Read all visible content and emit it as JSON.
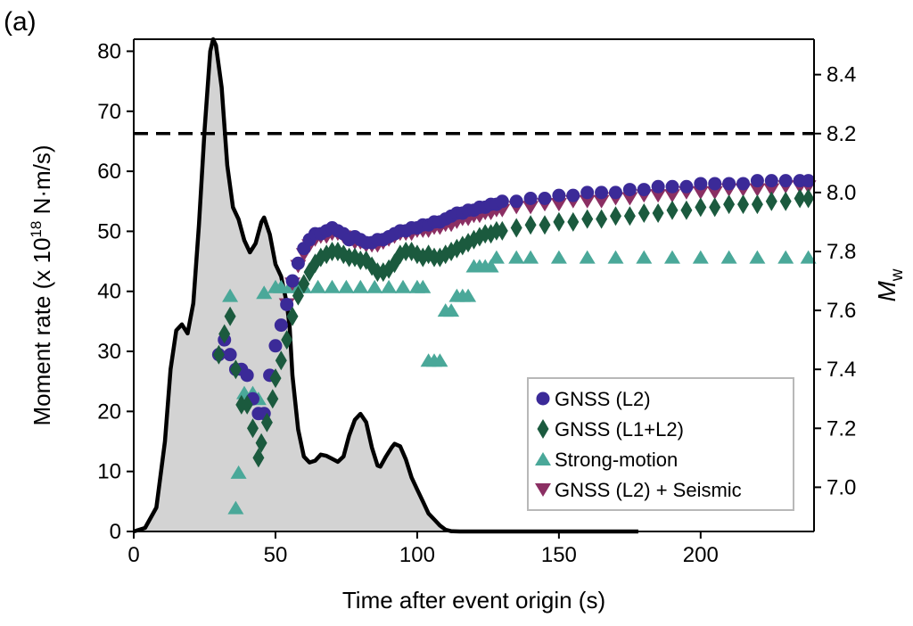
{
  "panel_label": "(a)",
  "chart_data": {
    "type": "line",
    "xlabel": "Time after event origin (s)",
    "ylabel": "Moment rate (x 10^18 N·m/s)",
    "ylabel_parts": {
      "main": "Moment rate (x 10",
      "sup": "18",
      "tail": " N·m/s)"
    },
    "y2label": "Mw",
    "y2label_parts": {
      "main": "M",
      "sub": "w"
    },
    "xlim": [
      0,
      240
    ],
    "ylim": [
      0,
      82
    ],
    "y2lim": [
      6.85,
      8.52
    ],
    "x_ticks": [
      0,
      50,
      100,
      150,
      200
    ],
    "y_ticks": [
      0,
      10,
      20,
      30,
      40,
      50,
      60,
      70,
      80
    ],
    "y2_ticks": [
      "7.0",
      "7.2",
      "7.4",
      "7.6",
      "7.8",
      "8.0",
      "8.2",
      "8.4"
    ],
    "grid": false,
    "legend_position": "bottom-right",
    "reference_line": {
      "axis": "y2",
      "value": 8.2,
      "style": "dashed"
    },
    "moment_rate": {
      "name": "Moment rate",
      "fill": "#d3d3d3",
      "stroke": "#000000",
      "points": [
        [
          0,
          0
        ],
        [
          4,
          0.6
        ],
        [
          8,
          4
        ],
        [
          11,
          15
        ],
        [
          13,
          27
        ],
        [
          15,
          33.5
        ],
        [
          17,
          34.5
        ],
        [
          19,
          33
        ],
        [
          21,
          38
        ],
        [
          23,
          51
        ],
        [
          25,
          67
        ],
        [
          27,
          80
        ],
        [
          28,
          82
        ],
        [
          29,
          81
        ],
        [
          31,
          74
        ],
        [
          33,
          61
        ],
        [
          35,
          54
        ],
        [
          37,
          52
        ],
        [
          39,
          48.5
        ],
        [
          41,
          46.5
        ],
        [
          43,
          48
        ],
        [
          45,
          51.5
        ],
        [
          46,
          52.3
        ],
        [
          48,
          49.5
        ],
        [
          50,
          44.5
        ],
        [
          52,
          42.5
        ],
        [
          54,
          38
        ],
        [
          55,
          34
        ],
        [
          56,
          26
        ],
        [
          58,
          17
        ],
        [
          60,
          12.5
        ],
        [
          62,
          11.5
        ],
        [
          64,
          11.8
        ],
        [
          66,
          12.8
        ],
        [
          68,
          12.6
        ],
        [
          70,
          12.1
        ],
        [
          72,
          11.6
        ],
        [
          74,
          12.5
        ],
        [
          76,
          16
        ],
        [
          78,
          18.6
        ],
        [
          80,
          19.6
        ],
        [
          82,
          18.2
        ],
        [
          84,
          14
        ],
        [
          86,
          11
        ],
        [
          87,
          10.8
        ],
        [
          89,
          12.5
        ],
        [
          91,
          14
        ],
        [
          92,
          14.6
        ],
        [
          94,
          14.2
        ],
        [
          96,
          12
        ],
        [
          98,
          9
        ],
        [
          100,
          7
        ],
        [
          102,
          5
        ],
        [
          104,
          3
        ],
        [
          106,
          2
        ],
        [
          108,
          1
        ],
        [
          110,
          0.3
        ],
        [
          112,
          0.05
        ],
        [
          115,
          0
        ],
        [
          178,
          0
        ]
      ]
    },
    "series": [
      {
        "name": "GNSS (L2)",
        "marker": "circle",
        "color": "#3b2a98",
        "points": [
          [
            30,
            7.45
          ],
          [
            32,
            7.5
          ],
          [
            34,
            7.45
          ],
          [
            36,
            7.4
          ],
          [
            38,
            7.4
          ],
          [
            40,
            7.38
          ],
          [
            42,
            7.3
          ],
          [
            44,
            7.25
          ],
          [
            46,
            7.25
          ],
          [
            48,
            7.38
          ],
          [
            50,
            7.48
          ],
          [
            52,
            7.55
          ],
          [
            54,
            7.62
          ],
          [
            56,
            7.7
          ],
          [
            58,
            7.76
          ],
          [
            60,
            7.81
          ],
          [
            62,
            7.84
          ],
          [
            64,
            7.86
          ],
          [
            66,
            7.86
          ],
          [
            68,
            7.87
          ],
          [
            70,
            7.88
          ],
          [
            72,
            7.87
          ],
          [
            74,
            7.86
          ],
          [
            76,
            7.84
          ],
          [
            78,
            7.85
          ],
          [
            80,
            7.84
          ],
          [
            82,
            7.83
          ],
          [
            84,
            7.83
          ],
          [
            86,
            7.84
          ],
          [
            88,
            7.84
          ],
          [
            90,
            7.85
          ],
          [
            92,
            7.86
          ],
          [
            94,
            7.87
          ],
          [
            96,
            7.87
          ],
          [
            98,
            7.88
          ],
          [
            100,
            7.88
          ],
          [
            102,
            7.89
          ],
          [
            104,
            7.89
          ],
          [
            106,
            7.9
          ],
          [
            108,
            7.9
          ],
          [
            110,
            7.91
          ],
          [
            112,
            7.92
          ],
          [
            114,
            7.93
          ],
          [
            116,
            7.93
          ],
          [
            118,
            7.94
          ],
          [
            120,
            7.94
          ],
          [
            122,
            7.95
          ],
          [
            124,
            7.95
          ],
          [
            126,
            7.96
          ],
          [
            128,
            7.96
          ],
          [
            130,
            7.97
          ],
          [
            135,
            7.97
          ],
          [
            140,
            7.98
          ],
          [
            145,
            7.98
          ],
          [
            150,
            7.99
          ],
          [
            155,
            7.99
          ],
          [
            160,
            8.0
          ],
          [
            165,
            8.0
          ],
          [
            170,
            8.0
          ],
          [
            175,
            8.01
          ],
          [
            180,
            8.01
          ],
          [
            185,
            8.02
          ],
          [
            190,
            8.02
          ],
          [
            195,
            8.02
          ],
          [
            200,
            8.03
          ],
          [
            205,
            8.03
          ],
          [
            210,
            8.03
          ],
          [
            215,
            8.03
          ],
          [
            220,
            8.04
          ],
          [
            225,
            8.04
          ],
          [
            230,
            8.04
          ],
          [
            235,
            8.04
          ],
          [
            238,
            8.04
          ]
        ]
      },
      {
        "name": "GNSS (L1+L2)",
        "marker": "diamond",
        "color": "#1b5a3e",
        "points": [
          [
            30,
            7.45
          ],
          [
            32,
            7.52
          ],
          [
            34,
            7.58
          ],
          [
            36,
            7.4
          ],
          [
            38,
            7.28
          ],
          [
            40,
            7.28
          ],
          [
            42,
            7.2
          ],
          [
            44,
            7.1
          ],
          [
            45,
            7.15
          ],
          [
            47,
            7.22
          ],
          [
            49,
            7.3
          ],
          [
            50,
            7.37
          ],
          [
            52,
            7.43
          ],
          [
            54,
            7.5
          ],
          [
            56,
            7.58
          ],
          [
            58,
            7.65
          ],
          [
            60,
            7.69
          ],
          [
            62,
            7.73
          ],
          [
            64,
            7.76
          ],
          [
            66,
            7.78
          ],
          [
            68,
            7.79
          ],
          [
            70,
            7.8
          ],
          [
            72,
            7.8
          ],
          [
            74,
            7.79
          ],
          [
            76,
            7.78
          ],
          [
            78,
            7.78
          ],
          [
            80,
            7.77
          ],
          [
            82,
            7.77
          ],
          [
            84,
            7.75
          ],
          [
            86,
            7.73
          ],
          [
            88,
            7.73
          ],
          [
            90,
            7.74
          ],
          [
            92,
            7.76
          ],
          [
            94,
            7.79
          ],
          [
            96,
            7.8
          ],
          [
            98,
            7.8
          ],
          [
            100,
            7.79
          ],
          [
            102,
            7.78
          ],
          [
            104,
            7.79
          ],
          [
            106,
            7.78
          ],
          [
            108,
            7.78
          ],
          [
            110,
            7.79
          ],
          [
            112,
            7.8
          ],
          [
            114,
            7.81
          ],
          [
            116,
            7.82
          ],
          [
            118,
            7.83
          ],
          [
            120,
            7.84
          ],
          [
            122,
            7.85
          ],
          [
            124,
            7.86
          ],
          [
            126,
            7.86
          ],
          [
            128,
            7.87
          ],
          [
            130,
            7.87
          ],
          [
            135,
            7.88
          ],
          [
            140,
            7.89
          ],
          [
            145,
            7.89
          ],
          [
            150,
            7.9
          ],
          [
            155,
            7.9
          ],
          [
            160,
            7.91
          ],
          [
            165,
            7.91
          ],
          [
            170,
            7.92
          ],
          [
            175,
            7.92
          ],
          [
            180,
            7.93
          ],
          [
            185,
            7.93
          ],
          [
            190,
            7.94
          ],
          [
            195,
            7.94
          ],
          [
            200,
            7.95
          ],
          [
            205,
            7.95
          ],
          [
            210,
            7.96
          ],
          [
            215,
            7.96
          ],
          [
            220,
            7.96
          ],
          [
            225,
            7.97
          ],
          [
            230,
            7.97
          ],
          [
            235,
            7.98
          ],
          [
            238,
            7.98
          ]
        ]
      },
      {
        "name": "Strong-motion",
        "marker": "triangle-up",
        "color": "#4aa899",
        "points": [
          [
            34,
            7.65
          ],
          [
            36,
            6.93
          ],
          [
            37,
            7.05
          ],
          [
            39,
            7.32
          ],
          [
            42,
            7.32
          ],
          [
            44,
            7.3
          ],
          [
            46,
            7.66
          ],
          [
            50,
            7.68
          ],
          [
            52,
            7.68
          ],
          [
            55,
            7.68
          ],
          [
            58,
            7.68
          ],
          [
            60,
            7.68
          ],
          [
            65,
            7.68
          ],
          [
            70,
            7.68
          ],
          [
            75,
            7.68
          ],
          [
            80,
            7.68
          ],
          [
            85,
            7.68
          ],
          [
            90,
            7.68
          ],
          [
            95,
            7.68
          ],
          [
            100,
            7.68
          ],
          [
            102,
            7.68
          ],
          [
            104,
            7.43
          ],
          [
            106,
            7.43
          ],
          [
            108,
            7.43
          ],
          [
            110,
            7.6
          ],
          [
            112,
            7.6
          ],
          [
            114,
            7.65
          ],
          [
            116,
            7.65
          ],
          [
            118,
            7.65
          ],
          [
            120,
            7.75
          ],
          [
            122,
            7.75
          ],
          [
            124,
            7.75
          ],
          [
            126,
            7.75
          ],
          [
            128,
            7.78
          ],
          [
            135,
            7.78
          ],
          [
            140,
            7.78
          ],
          [
            150,
            7.78
          ],
          [
            160,
            7.78
          ],
          [
            170,
            7.78
          ],
          [
            180,
            7.78
          ],
          [
            190,
            7.78
          ],
          [
            200,
            7.78
          ],
          [
            210,
            7.78
          ],
          [
            220,
            7.78
          ],
          [
            230,
            7.78
          ],
          [
            238,
            7.78
          ]
        ]
      },
      {
        "name": "GNSS (L2) + Seismic",
        "marker": "triangle-down",
        "color": "#8b2f63",
        "points": [
          [
            54,
            7.62
          ],
          [
            56,
            7.69
          ],
          [
            58,
            7.75
          ],
          [
            60,
            7.79
          ],
          [
            62,
            7.82
          ],
          [
            64,
            7.84
          ],
          [
            66,
            7.85
          ],
          [
            68,
            7.85
          ],
          [
            70,
            7.86
          ],
          [
            72,
            7.86
          ],
          [
            74,
            7.85
          ],
          [
            76,
            7.84
          ],
          [
            78,
            7.83
          ],
          [
            80,
            7.83
          ],
          [
            82,
            7.82
          ],
          [
            84,
            7.82
          ],
          [
            86,
            7.82
          ],
          [
            88,
            7.83
          ],
          [
            90,
            7.84
          ],
          [
            92,
            7.85
          ],
          [
            94,
            7.86
          ],
          [
            96,
            7.86
          ],
          [
            98,
            7.86
          ],
          [
            100,
            7.87
          ],
          [
            102,
            7.87
          ],
          [
            104,
            7.87
          ],
          [
            106,
            7.88
          ],
          [
            108,
            7.88
          ],
          [
            110,
            7.89
          ],
          [
            112,
            7.89
          ],
          [
            114,
            7.9
          ],
          [
            116,
            7.91
          ],
          [
            118,
            7.91
          ],
          [
            120,
            7.92
          ],
          [
            122,
            7.92
          ],
          [
            124,
            7.93
          ],
          [
            126,
            7.93
          ],
          [
            128,
            7.94
          ],
          [
            130,
            7.94
          ],
          [
            135,
            7.95
          ],
          [
            140,
            7.95
          ],
          [
            145,
            7.96
          ],
          [
            150,
            7.96
          ],
          [
            155,
            7.97
          ],
          [
            160,
            7.97
          ],
          [
            165,
            7.97
          ],
          [
            170,
            7.98
          ],
          [
            175,
            7.98
          ],
          [
            180,
            7.99
          ],
          [
            185,
            7.99
          ],
          [
            190,
            7.99
          ],
          [
            195,
            8.0
          ],
          [
            200,
            8.0
          ],
          [
            205,
            8.0
          ],
          [
            210,
            8.01
          ],
          [
            215,
            8.01
          ],
          [
            220,
            8.01
          ],
          [
            225,
            8.01
          ],
          [
            230,
            8.02
          ],
          [
            235,
            8.02
          ],
          [
            238,
            8.02
          ]
        ]
      }
    ]
  }
}
